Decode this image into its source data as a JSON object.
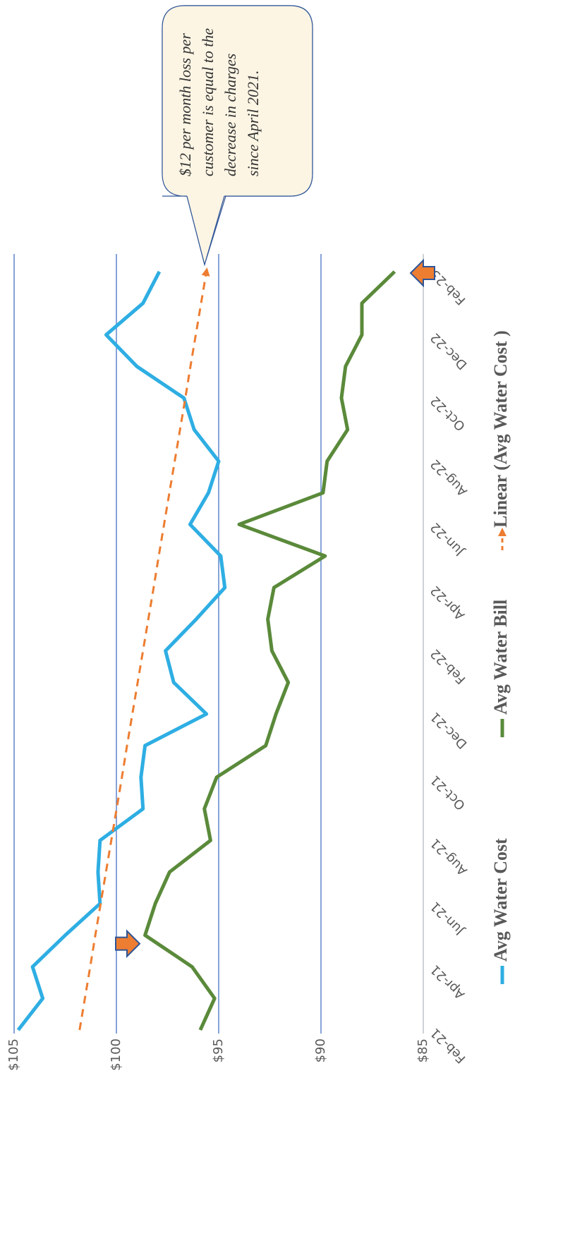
{
  "chart_data": {
    "type": "line",
    "categories": [
      "Feb-21",
      null,
      "Apr-21",
      null,
      "Jun-21",
      null,
      "Aug-21",
      null,
      "Oct-21",
      null,
      "Dec-21",
      null,
      "Feb-22",
      null,
      "Apr-22",
      null,
      "Jun-22",
      null,
      "Aug-22",
      null,
      "Oct-22",
      null,
      "Dec-22",
      null,
      "Feb-23"
    ],
    "series": [
      {
        "name": "Avg Water Cost",
        "color": "#2eaee3",
        "values": [
          104.8,
          103.6,
          104.1,
          102.5,
          100.8,
          100.9,
          100.8,
          98.7,
          98.8,
          98.6,
          95.6,
          97.2,
          97.6,
          96.1,
          94.7,
          94.9,
          96.4,
          95.5,
          95.0,
          96.2,
          96.7,
          99.0,
          100.5,
          98.7,
          97.9
        ]
      },
      {
        "name": "Avg Water Bill",
        "color": "#5a8a3a",
        "values": [
          95.9,
          95.2,
          96.3,
          98.6,
          98.1,
          97.4,
          95.4,
          95.7,
          95.1,
          92.7,
          92.2,
          91.6,
          92.4,
          92.6,
          92.3,
          89.8,
          94.0,
          89.9,
          89.7,
          88.7,
          89.0,
          88.8,
          88.0,
          88.0,
          86.4
        ]
      },
      {
        "name": "Linear (Avg Water Cost )",
        "color": "#ed7d31",
        "dashed": true,
        "values": [
          101.8,
          101.54,
          101.28,
          101.03,
          100.77,
          100.51,
          100.25,
          99.99,
          99.73,
          99.48,
          99.22,
          98.96,
          98.7,
          98.44,
          98.18,
          97.93,
          97.67,
          97.41,
          97.15,
          96.89,
          96.63,
          96.38,
          96.12,
          95.86,
          95.6
        ]
      }
    ],
    "ylim": [
      85,
      105
    ],
    "yticks": [
      {
        "value": 85,
        "label": "$85"
      },
      {
        "value": 90,
        "label": "$90"
      },
      {
        "value": 95,
        "label": "$95"
      },
      {
        "value": 100,
        "label": "$100"
      },
      {
        "value": 105,
        "label": "$105"
      }
    ],
    "grid": true,
    "rotation": -90,
    "annotation": [
      "$12 per month loss per",
      "customer is equal to the",
      "decrease in charges",
      "since April 2021."
    ]
  }
}
